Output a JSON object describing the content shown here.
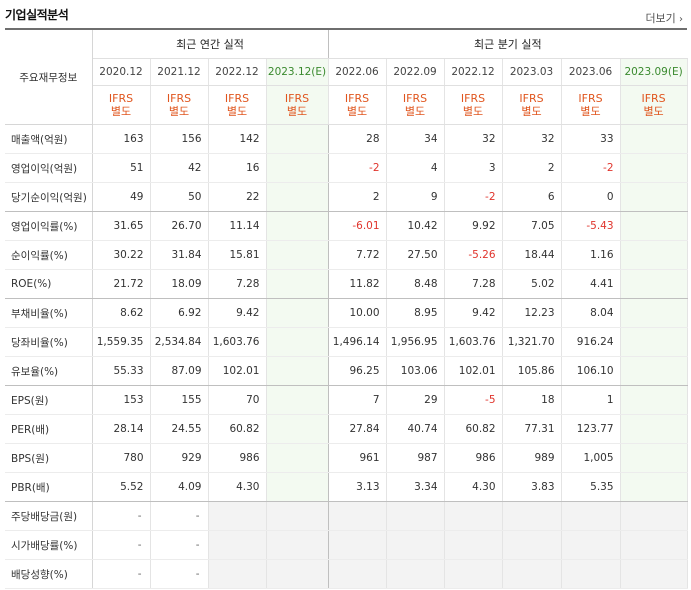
{
  "header": {
    "title": "기업실적분석",
    "more_label": "더보기"
  },
  "table": {
    "row_header_label": "주요재무정보",
    "annual_group_label": "최근 연간 실적",
    "quarter_group_label": "최근 분기 실적",
    "annual_periods": [
      "2020.12",
      "2021.12",
      "2022.12",
      "2023.12(E)"
    ],
    "quarter_periods": [
      "2022.06",
      "2022.09",
      "2022.12",
      "2023.03",
      "2023.06",
      "2023.09(E)"
    ],
    "ifrs_line1": "IFRS",
    "ifrs_line2": "별도",
    "rows": [
      {
        "label": "매출액(억원)",
        "values": [
          "163",
          "156",
          "142",
          "",
          "28",
          "34",
          "32",
          "32",
          "33",
          ""
        ]
      },
      {
        "label": "영업이익(억원)",
        "values": [
          "51",
          "42",
          "16",
          "",
          "-2",
          "4",
          "3",
          "2",
          "-2",
          ""
        ]
      },
      {
        "label": "당기순이익(억원)",
        "values": [
          "49",
          "50",
          "22",
          "",
          "2",
          "9",
          "-2",
          "6",
          "0",
          ""
        ]
      },
      {
        "label": "영업이익률(%)",
        "values": [
          "31.65",
          "26.70",
          "11.14",
          "",
          "-6.01",
          "10.42",
          "9.92",
          "7.05",
          "-5.43",
          ""
        ]
      },
      {
        "label": "순이익률(%)",
        "values": [
          "30.22",
          "31.84",
          "15.81",
          "",
          "7.72",
          "27.50",
          "-5.26",
          "18.44",
          "1.16",
          ""
        ]
      },
      {
        "label": "ROE(%)",
        "values": [
          "21.72",
          "18.09",
          "7.28",
          "",
          "11.82",
          "8.48",
          "7.28",
          "5.02",
          "4.41",
          ""
        ]
      },
      {
        "label": "부채비율(%)",
        "values": [
          "8.62",
          "6.92",
          "9.42",
          "",
          "10.00",
          "8.95",
          "9.42",
          "12.23",
          "8.04",
          ""
        ]
      },
      {
        "label": "당좌비율(%)",
        "values": [
          "1,559.35",
          "2,534.84",
          "1,603.76",
          "",
          "1,496.14",
          "1,956.95",
          "1,603.76",
          "1,321.70",
          "916.24",
          ""
        ]
      },
      {
        "label": "유보율(%)",
        "values": [
          "55.33",
          "87.09",
          "102.01",
          "",
          "96.25",
          "103.06",
          "102.01",
          "105.86",
          "106.10",
          ""
        ]
      },
      {
        "label": "EPS(원)",
        "values": [
          "153",
          "155",
          "70",
          "",
          "7",
          "29",
          "-5",
          "18",
          "1",
          ""
        ]
      },
      {
        "label": "PER(배)",
        "values": [
          "28.14",
          "24.55",
          "60.82",
          "",
          "27.84",
          "40.74",
          "60.82",
          "77.31",
          "123.77",
          ""
        ]
      },
      {
        "label": "BPS(원)",
        "values": [
          "780",
          "929",
          "986",
          "",
          "961",
          "987",
          "986",
          "989",
          "1,005",
          ""
        ]
      },
      {
        "label": "PBR(배)",
        "values": [
          "5.52",
          "4.09",
          "4.30",
          "",
          "3.13",
          "3.34",
          "4.30",
          "3.83",
          "5.35",
          ""
        ]
      },
      {
        "label": "주당배당금(원)",
        "values": [
          "-",
          "-",
          "",
          "",
          "",
          "",
          "",
          "",
          "",
          ""
        ]
      },
      {
        "label": "시가배당률(%)",
        "values": [
          "-",
          "-",
          "",
          "",
          "",
          "",
          "",
          "",
          "",
          ""
        ]
      },
      {
        "label": "배당성향(%)",
        "values": [
          "-",
          "-",
          "",
          "",
          "",
          "",
          "",
          "",
          "",
          ""
        ]
      }
    ]
  },
  "colors": {
    "negative": "#e0342c",
    "ifrs": "#e0561f",
    "estimate_bg": "#f3faf1",
    "estimate_text": "#3a8a2e"
  }
}
